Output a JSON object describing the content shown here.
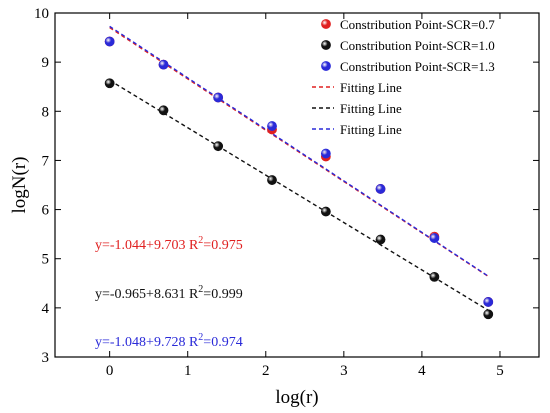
{
  "chart_data": {
    "type": "scatter",
    "xlabel": "log(r)",
    "ylabel": "logN(r)",
    "xlim": [
      -0.7,
      5.5
    ],
    "ylim": [
      3,
      10
    ],
    "xticks": [
      0,
      1,
      2,
      3,
      4,
      5
    ],
    "yticks": [
      3,
      4,
      5,
      6,
      7,
      8,
      9,
      10
    ],
    "grid": false,
    "x": [
      0,
      0.69,
      1.39,
      2.08,
      2.77,
      3.47,
      4.16,
      4.85
    ],
    "series": [
      {
        "name": "Constribution Point-SCR=0.7",
        "color": "#e02020",
        "values": [
          9.42,
          8.95,
          8.28,
          7.63,
          7.08,
          6.42,
          5.45,
          4.12
        ],
        "fit": {
          "name": "Fitting Line",
          "slope": -1.044,
          "intercept": 9.703
        },
        "equation": "y=-1.044+9.703",
        "r2": "=0.975"
      },
      {
        "name": "Constribution Point-SCR=1.0",
        "color": "#111111",
        "values": [
          8.57,
          8.02,
          7.29,
          6.6,
          5.96,
          5.39,
          4.63,
          3.87
        ],
        "fit": {
          "name": "Fitting Line",
          "slope": -0.965,
          "intercept": 8.631
        },
        "equation": "y=-0.965+8.631",
        "r2": "=0.999"
      },
      {
        "name": "Constribution Point-SCR=1.3",
        "color": "#2a2ad8",
        "values": [
          9.42,
          8.95,
          8.28,
          7.7,
          7.14,
          6.42,
          5.42,
          4.12
        ],
        "fit": {
          "name": "Fitting Line",
          "slope": -1.048,
          "intercept": 9.728
        },
        "equation": "y=-1.048+9.728",
        "r2": "=0.974"
      }
    ],
    "legend_position": "top-right"
  },
  "r2_label": "R",
  "r2_sup": "2"
}
